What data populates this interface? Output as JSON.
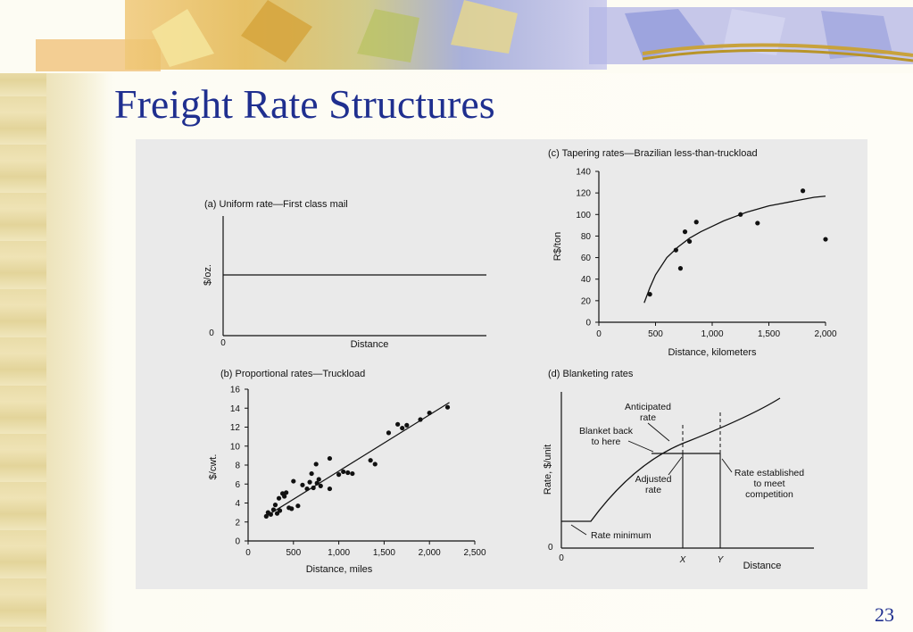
{
  "slide": {
    "title": "Freight Rate Structures",
    "page_number": "23"
  },
  "chart_data": [
    {
      "id": "a",
      "type": "line",
      "title": "(a) Uniform rate—First class mail",
      "xlabel": "Distance",
      "ylabel": "$/oz.",
      "x_ticks": [
        "0"
      ],
      "y_ticks": [
        "0"
      ],
      "series": [
        {
          "x": [
            0,
            1
          ],
          "y": [
            0.55,
            0.55
          ]
        }
      ]
    },
    {
      "id": "b",
      "type": "scatter",
      "title": "(b) Proportional rates—Truckload",
      "xlabel": "Distance, miles",
      "ylabel": "$/cwt.",
      "xlim": [
        0,
        2500
      ],
      "ylim": [
        0,
        16
      ],
      "x_ticks": [
        "0",
        "500",
        "1,000",
        "1,500",
        "2,000",
        "2,500"
      ],
      "y_ticks": [
        "0",
        "2",
        "4",
        "6",
        "8",
        "10",
        "12",
        "14",
        "16"
      ],
      "points": [
        [
          200,
          2.6
        ],
        [
          220,
          3.0
        ],
        [
          250,
          2.8
        ],
        [
          280,
          3.3
        ],
        [
          300,
          3.8
        ],
        [
          320,
          2.9
        ],
        [
          340,
          4.5
        ],
        [
          350,
          3.2
        ],
        [
          380,
          5.0
        ],
        [
          400,
          4.7
        ],
        [
          420,
          5.1
        ],
        [
          450,
          3.5
        ],
        [
          480,
          3.4
        ],
        [
          500,
          6.3
        ],
        [
          550,
          3.7
        ],
        [
          600,
          5.9
        ],
        [
          650,
          5.5
        ],
        [
          680,
          6.2
        ],
        [
          700,
          7.1
        ],
        [
          720,
          5.6
        ],
        [
          750,
          8.1
        ],
        [
          760,
          6.1
        ],
        [
          780,
          6.5
        ],
        [
          800,
          5.8
        ],
        [
          900,
          5.5
        ],
        [
          900,
          8.7
        ],
        [
          1000,
          7.0
        ],
        [
          1050,
          7.3
        ],
        [
          1100,
          7.2
        ],
        [
          1150,
          7.1
        ],
        [
          1350,
          8.5
        ],
        [
          1400,
          8.1
        ],
        [
          1550,
          11.4
        ],
        [
          1650,
          12.3
        ],
        [
          1700,
          11.9
        ],
        [
          1750,
          12.2
        ],
        [
          1900,
          12.8
        ],
        [
          2000,
          13.5
        ],
        [
          2200,
          14.1
        ]
      ],
      "trend": {
        "x": [
          180,
          2220
        ],
        "y": [
          2.5,
          14.6
        ]
      }
    },
    {
      "id": "c",
      "type": "scatter",
      "title": "(c) Tapering rates—Brazilian less-than-truckload",
      "xlabel": "Distance, kilometers",
      "ylabel": "R$/ton",
      "xlim": [
        0,
        2000
      ],
      "ylim": [
        0,
        140
      ],
      "x_ticks": [
        "0",
        "500",
        "1,000",
        "1,500",
        "2,000"
      ],
      "y_ticks": [
        "0",
        "20",
        "40",
        "60",
        "80",
        "100",
        "120",
        "140"
      ],
      "points": [
        [
          450,
          26
        ],
        [
          680,
          67
        ],
        [
          720,
          50
        ],
        [
          760,
          84
        ],
        [
          800,
          75
        ],
        [
          860,
          93
        ],
        [
          1250,
          100
        ],
        [
          1400,
          92
        ],
        [
          1800,
          122
        ],
        [
          2000,
          77
        ]
      ],
      "curve": {
        "x": [
          400,
          450,
          500,
          600,
          700,
          800,
          900,
          1000,
          1100,
          1200,
          1300,
          1400,
          1500,
          1600,
          1700,
          1800,
          1900,
          2000
        ],
        "y": [
          18,
          32,
          44,
          60,
          70,
          78,
          84,
          89,
          94,
          98,
          102,
          105,
          108,
          110,
          112,
          114,
          116,
          117
        ]
      }
    },
    {
      "id": "d",
      "type": "line",
      "title": "(d) Blanketing rates",
      "xlabel": "Distance",
      "ylabel": "Rate, $/unit",
      "x_ticks": [
        "0",
        "X",
        "Y"
      ],
      "y_ticks": [
        "0"
      ],
      "annotations": [
        {
          "line1": "Anticipated",
          "line2": "rate"
        },
        {
          "line1": "Blanket back",
          "line2": "to here"
        },
        {
          "line1": "Adjusted",
          "line2": "rate"
        },
        {
          "line1": "Rate established",
          "line2": "to meet",
          "line3": "competition"
        },
        {
          "line1": "Rate minimum"
        }
      ]
    }
  ]
}
